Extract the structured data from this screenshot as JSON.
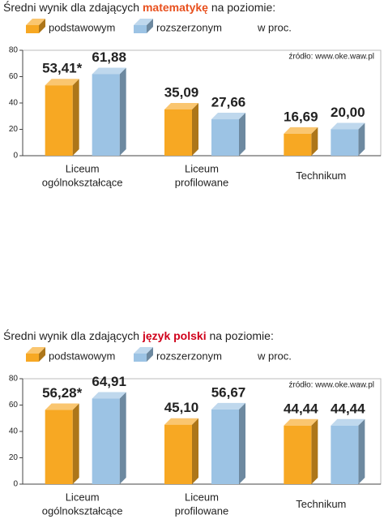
{
  "chart_data": [
    {
      "type": "bar",
      "title_parts": [
        "Średni wynik dla zdających",
        "matematykę",
        "na poziomie:"
      ],
      "highlight_color": "#e8501e",
      "unit": "w proc.",
      "source": "źródło: www.oke.waw.pl",
      "categories": [
        "Liceum\nogólnokształcące",
        "Liceum\nprofilowane",
        "Technikum"
      ],
      "series": [
        {
          "name": "podstawowym",
          "color": "#f7a823",
          "values": [
            53.41,
            35.09,
            16.69
          ],
          "value_labels": [
            "53,41*",
            "35,09",
            "16,69"
          ]
        },
        {
          "name": "rozszerzonym",
          "color": "#9cc3e4",
          "values": [
            61.88,
            27.66,
            20.0
          ],
          "value_labels": [
            "61,88",
            "27,66",
            "20,00"
          ]
        }
      ],
      "ylim": [
        0,
        80
      ],
      "yticks": [
        0,
        20,
        40,
        60,
        80
      ]
    },
    {
      "type": "bar",
      "title_parts": [
        "Średni wynik dla zdających",
        "język polski",
        "na poziomie:"
      ],
      "highlight_color": "#d0021b",
      "unit": "w proc.",
      "source": "źródło: www.oke.waw.pl",
      "categories": [
        "Liceum\nogólnokształcące",
        "Liceum\nprofilowane",
        "Technikum"
      ],
      "series": [
        {
          "name": "podstawowym",
          "color": "#f7a823",
          "values": [
            56.28,
            45.1,
            44.44
          ],
          "value_labels": [
            "56,28*",
            "45,10",
            "44,44"
          ]
        },
        {
          "name": "rozszerzonym",
          "color": "#9cc3e4",
          "values": [
            64.91,
            56.67,
            44.44
          ],
          "value_labels": [
            "64,91",
            "56,67",
            "44,44"
          ]
        }
      ],
      "ylim": [
        0,
        80
      ],
      "yticks": [
        0,
        20,
        40,
        60,
        80
      ]
    }
  ]
}
